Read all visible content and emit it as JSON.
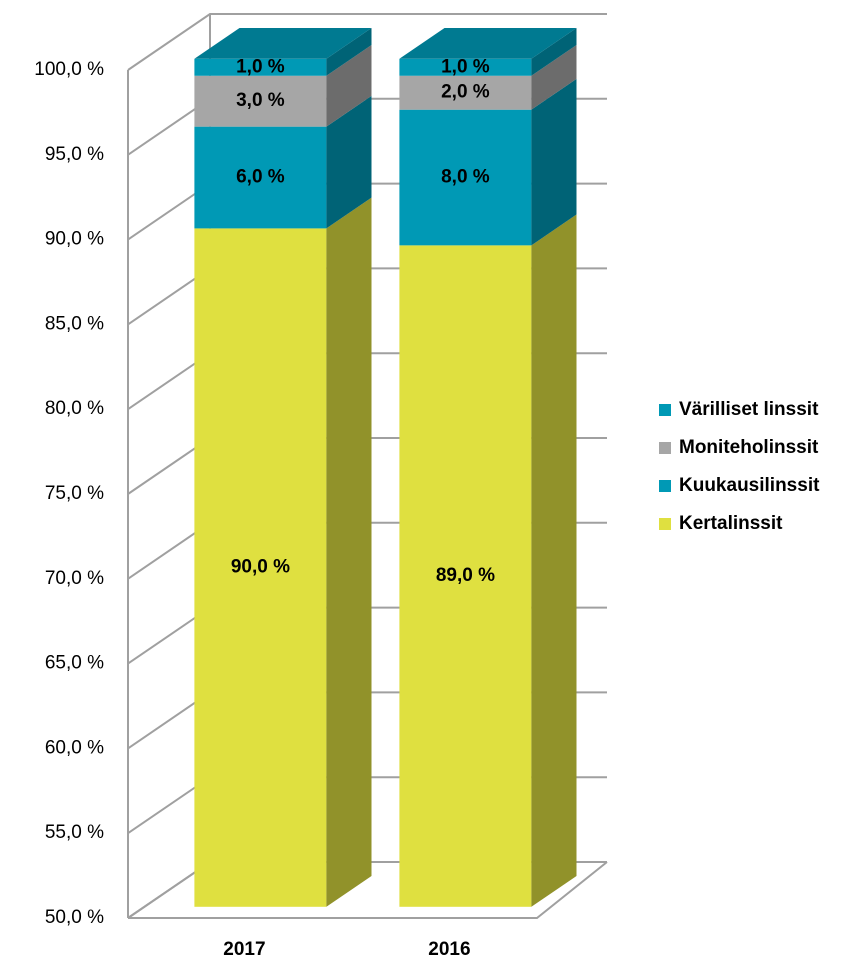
{
  "chart_data": {
    "type": "bar3d-stacked",
    "categories": [
      "2017",
      "2016"
    ],
    "series": [
      {
        "name": "Kertalinssit",
        "color": "#dfe040",
        "values": [
          90,
          89
        ],
        "value_labels": [
          "90,0 %",
          "89,0 %"
        ]
      },
      {
        "name": "Kuukausilinssit",
        "color": "#0099b5",
        "values": [
          6,
          8
        ],
        "value_labels": [
          "6,0 %",
          "8,0 %"
        ]
      },
      {
        "name": "Moniteholinssit",
        "color": "#a6a6a6",
        "values": [
          3,
          2
        ],
        "value_labels": [
          "3,0 %",
          "2,0 %"
        ]
      },
      {
        "name": "Värilliset linssit",
        "color": "#0099b5",
        "values": [
          1,
          1
        ],
        "value_labels": [
          "1,0 %",
          "1,0 %"
        ]
      }
    ],
    "ylim": [
      50,
      100
    ],
    "yticks": [
      {
        "value": 50,
        "label": "50,0 %"
      },
      {
        "value": 55,
        "label": "55,0 %"
      },
      {
        "value": 60,
        "label": "60,0 %"
      },
      {
        "value": 65,
        "label": "65,0 %"
      },
      {
        "value": 70,
        "label": "70,0 %"
      },
      {
        "value": 75,
        "label": "75,0 %"
      },
      {
        "value": 80,
        "label": "80,0 %"
      },
      {
        "value": 85,
        "label": "85,0 %"
      },
      {
        "value": 90,
        "label": "90,0 %"
      },
      {
        "value": 95,
        "label": "95,0 %"
      },
      {
        "value": 100,
        "label": "100,0 %"
      }
    ],
    "grid": true,
    "legend": "right"
  }
}
